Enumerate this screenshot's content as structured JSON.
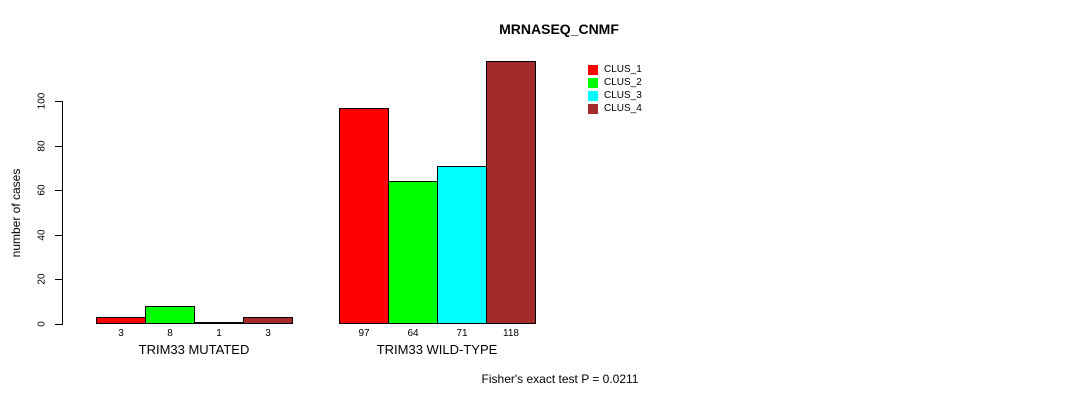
{
  "chart_data": {
    "type": "bar",
    "title": "MRNASEQ_CNMF",
    "ylabel": "number of cases",
    "xlabel": "",
    "groups": [
      "TRIM33 MUTATED",
      "TRIM33 WILD-TYPE"
    ],
    "series": [
      {
        "name": "CLUS_1",
        "color": "#FF0000",
        "values": [
          3,
          97
        ]
      },
      {
        "name": "CLUS_2",
        "color": "#00FF00",
        "values": [
          8,
          64
        ]
      },
      {
        "name": "CLUS_3",
        "color": "#00FFFF",
        "values": [
          1,
          71
        ]
      },
      {
        "name": "CLUS_4",
        "color": "#A52A2A",
        "values": [
          3,
          118
        ]
      }
    ],
    "yticks": [
      0,
      20,
      40,
      60,
      80,
      100
    ],
    "ylim": [
      0,
      118
    ],
    "bar_value_labels": [
      [
        3,
        8,
        1,
        3
      ],
      [
        97,
        64,
        71,
        118
      ]
    ],
    "legend": {
      "position": "top-right",
      "entries": [
        "CLUS_1",
        "CLUS_2",
        "CLUS_3",
        "CLUS_4"
      ]
    },
    "annotation": "Fisher's exact test P = 0.0211",
    "grid": false,
    "axis_color": "#000000",
    "background_color": "#FFFFFF"
  }
}
